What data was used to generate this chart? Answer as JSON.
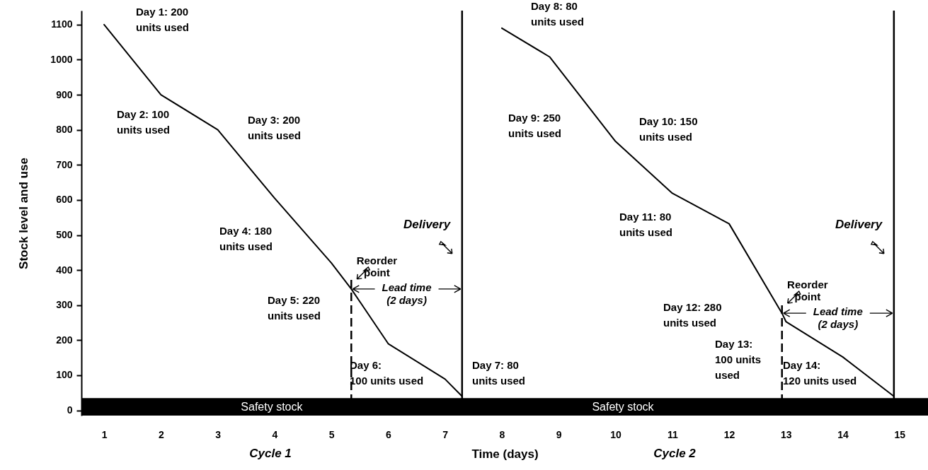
{
  "chart_data": {
    "type": "line",
    "xlabel": "Time (days)",
    "ylabel": "Stock level and use",
    "series": [
      {
        "color": "#000000",
        "x": [
          1,
          2,
          3,
          4,
          5,
          5.35,
          6,
          7,
          7.3,
          7.6,
          8,
          8.84,
          10,
          11,
          12,
          12.93,
          13,
          14,
          14.9
        ],
        "values": [
          1100,
          900,
          800,
          605,
          420,
          346,
          190,
          89,
          40,
          null,
          1090,
          1008,
          767,
          619,
          532,
          277,
          253,
          152,
          40
        ]
      }
    ],
    "xlim": [
      0.6,
      15.5
    ],
    "ylim": [
      -15,
      1140
    ],
    "xticks": [
      1,
      2,
      3,
      4,
      5,
      6,
      7,
      8,
      9,
      10,
      11,
      12,
      13,
      14,
      15
    ],
    "yticks": [
      0,
      100,
      200,
      300,
      400,
      500,
      600,
      700,
      800,
      900,
      1000,
      1100
    ],
    "grid": false,
    "marker": "none",
    "line_style": "solid",
    "ref_lines": [
      {
        "axis": "x",
        "value": 5.35,
        "label": "Reorder\npoint",
        "line_style": "dashed",
        "color": "#000000"
      },
      {
        "axis": "x",
        "value": 7.3,
        "label": "Delivery",
        "line_style": "solid",
        "color": "#000000"
      },
      {
        "axis": "x",
        "value": 12.93,
        "label": "Reorder\npoint",
        "line_style": "dashed",
        "color": "#000000"
      },
      {
        "axis": "x",
        "value": 14.9,
        "label": "Delivery",
        "line_style": "solid",
        "color": "#000000"
      }
    ],
    "bands": [
      {
        "axis": "y",
        "from": -15,
        "to": 35,
        "label": "Safety stock",
        "color": "#000000"
      }
    ],
    "annotations": [
      "Day 1: 200\nunits used",
      "Day 2: 100\nunits used",
      "Day 3: 200\nunits used",
      "Day 4: 180\nunits used",
      "Day 5: 220\nunits used",
      "Day 6:\n100 units used",
      "Day 7: 80\nunits used",
      "Day 8: 80\nunits used",
      "Day 9: 250\nunits used",
      "Day 10: 150\nunits used",
      "Day 11: 80\nunits used",
      "Day 12: 280\nunits used",
      "Day 13:\n100 units\nused",
      "Day 14:\n120 units used",
      {
        "text": "Lead time\n(2 days)",
        "x": 5.35,
        "y": 346
      },
      {
        "text": "Lead time\n(2 days)",
        "x": 12.93,
        "y": 277
      },
      "Cycle 1",
      "Cycle 2",
      "Safety stock"
    ]
  }
}
